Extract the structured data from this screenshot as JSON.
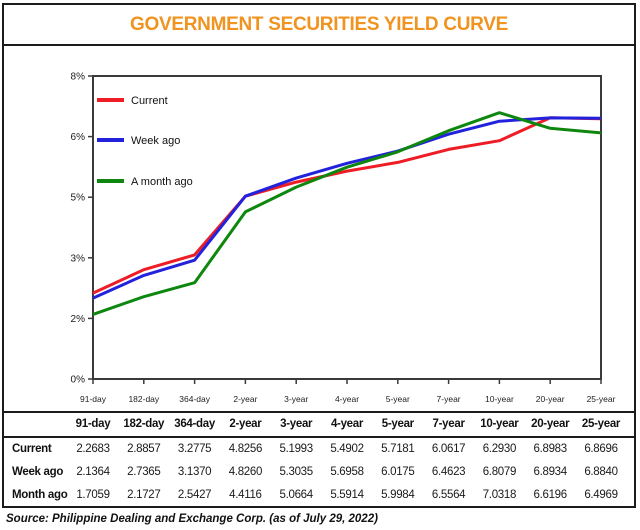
{
  "title": "GOVERNMENT SECURITIES YIELD CURVE",
  "theme": {
    "title_color": "#f0931f",
    "border_color": "#1b1b1b",
    "axis_color": "#3a3a3a"
  },
  "chart_data": {
    "type": "line",
    "title": "GOVERNMENT SECURITIES YIELD CURVE",
    "categories": [
      "91-day",
      "182-day",
      "364-day",
      "2-year",
      "3-year",
      "4-year",
      "5-year",
      "7-year",
      "10-year",
      "20-year",
      "25-year"
    ],
    "series": [
      {
        "name": "Current",
        "color": "#ee1c25",
        "values": [
          2.2683,
          2.8857,
          3.2775,
          4.8256,
          5.1993,
          5.4902,
          5.7181,
          6.0617,
          6.293,
          6.8983,
          6.8696
        ]
      },
      {
        "name": "Week ago",
        "color": "#2222dd",
        "values": [
          2.1364,
          2.7365,
          3.137,
          4.826,
          5.3035,
          5.6958,
          6.0175,
          6.4623,
          6.8079,
          6.8934,
          6.884
        ]
      },
      {
        "name": "A month ago",
        "color": "#0d870d",
        "values": [
          1.7059,
          2.1727,
          2.5427,
          4.4116,
          5.0664,
          5.5914,
          5.9984,
          6.5564,
          7.0318,
          6.6196,
          6.4969
        ]
      }
    ],
    "y_axis": {
      "range": [
        0,
        8
      ],
      "ticks": [
        {
          "value": 0,
          "label": "0%"
        },
        {
          "value": 1.6,
          "label": "2%"
        },
        {
          "value": 3.2,
          "label": "3%"
        },
        {
          "value": 4.8,
          "label": "5%"
        },
        {
          "value": 6.4,
          "label": "6%"
        },
        {
          "value": 8,
          "label": "8%"
        }
      ]
    },
    "legend_position": "top-left-inside",
    "grid": false
  },
  "table": {
    "columns": [
      "91-day",
      "182-day",
      "364-day",
      "2-year",
      "3-year",
      "4-year",
      "5-year",
      "7-year",
      "10-year",
      "20-year",
      "25-year"
    ],
    "rows": [
      {
        "label": "Current",
        "values": [
          "2.2683",
          "2.8857",
          "3.2775",
          "4.8256",
          "5.1993",
          "5.4902",
          "5.7181",
          "6.0617",
          "6.2930",
          "6.8983",
          "6.8696"
        ]
      },
      {
        "label": "Week ago",
        "values": [
          "2.1364",
          "2.7365",
          "3.1370",
          "4.8260",
          "5.3035",
          "5.6958",
          "6.0175",
          "6.4623",
          "6.8079",
          "6.8934",
          "6.8840"
        ]
      },
      {
        "label": "Month ago",
        "values": [
          "1.7059",
          "2.1727",
          "2.5427",
          "4.4116",
          "5.0664",
          "5.5914",
          "5.9984",
          "6.5564",
          "7.0318",
          "6.6196",
          "6.4969"
        ]
      }
    ]
  },
  "source": "Source: Philippine Dealing and Exchange Corp. (as of July 29, 2022)"
}
